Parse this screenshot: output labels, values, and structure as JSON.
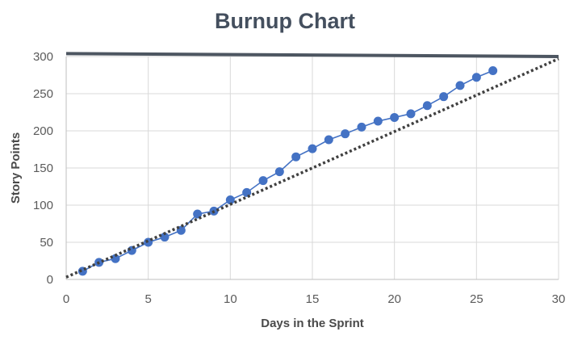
{
  "chart_data": {
    "type": "line",
    "title": "Burnup Chart",
    "xlabel": "Days in the Sprint",
    "ylabel": "Story Points",
    "xlim": [
      0,
      30
    ],
    "ylim": [
      0,
      300
    ],
    "x_ticks": [
      0,
      5,
      10,
      15,
      20,
      25,
      30
    ],
    "y_ticks": [
      0,
      50,
      100,
      150,
      200,
      250,
      300
    ],
    "grid": true,
    "legend": "none",
    "series": [
      {
        "style": "solid-line-with-markers",
        "color": "#4472c4",
        "x": [
          1,
          2,
          3,
          4,
          5,
          6,
          7,
          8,
          9,
          10,
          11,
          12,
          13,
          14,
          15,
          16,
          17,
          18,
          19,
          20,
          21,
          22,
          23,
          24,
          25,
          26
        ],
        "y": [
          11,
          23,
          28,
          39,
          50,
          57,
          66,
          88,
          92,
          107,
          117,
          133,
          145,
          165,
          176,
          188,
          196,
          205,
          213,
          218,
          223,
          234,
          246,
          261,
          272,
          281
        ]
      },
      {
        "style": "dotted-trend-line",
        "color": "#404040",
        "x": [
          0,
          30
        ],
        "y": [
          3,
          297
        ]
      },
      {
        "style": "scope-line",
        "color": "#4d5661",
        "x": [
          0,
          30
        ],
        "y": [
          304,
          300
        ]
      }
    ]
  }
}
